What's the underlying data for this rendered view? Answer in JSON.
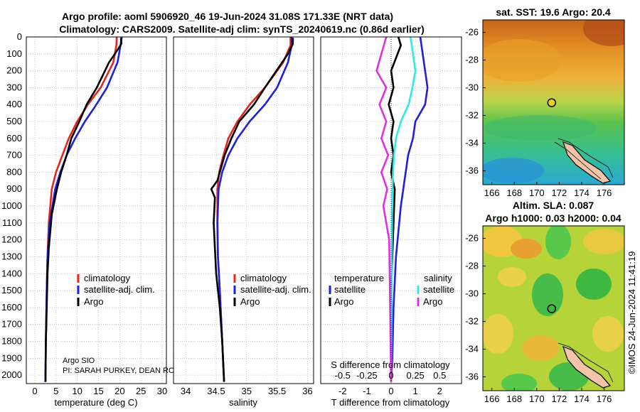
{
  "header": {
    "line1": "Argo profile: aoml 5906920_46 19-Jun-2024 31.08S 171.33E (NRT data)",
    "line2": "Climatology: CARS2009. Satellite-adj clim: synTS_20240619.nc (0.86d earlier)"
  },
  "watermark": "©IMOS 24-Jun-2024 11:41:19",
  "colors": {
    "climatology": "#e8251c",
    "satellite": "#1f1fdc",
    "argo": "#000000",
    "sal_satellite": "#33e8e8",
    "sal_argo": "#e030e0"
  },
  "chart_data": [
    {
      "id": "temperature",
      "type": "line",
      "xlabel": "temperature (deg C)",
      "ylabel": "",
      "xlim": [
        -2,
        31
      ],
      "ylim": [
        2050,
        0
      ],
      "xticks": [
        0,
        5,
        10,
        15,
        20,
        25,
        30
      ],
      "yticks": [
        0,
        100,
        200,
        300,
        400,
        500,
        600,
        700,
        800,
        900,
        1000,
        1100,
        1200,
        1300,
        1400,
        1500,
        1600,
        1700,
        1800,
        1900,
        2000
      ],
      "legend": [
        "climatology",
        "satellite-adj. clim.",
        "Argo"
      ],
      "legend_position": "bottom-right",
      "annotations": [
        "Argo SIO",
        "PI: SARAH PURKEY, DEAN RO"
      ],
      "series": [
        {
          "name": "climatology",
          "color": "#e8251c",
          "x": [
            19.3,
            19.2,
            18.5,
            15.5,
            12.5,
            10.0,
            8.0,
            6.5,
            5.0,
            4.0,
            3.3,
            3.0,
            2.8,
            2.6,
            2.5
          ],
          "depth": [
            0,
            50,
            150,
            300,
            400,
            500,
            600,
            700,
            800,
            900,
            1100,
            1300,
            1500,
            1800,
            2040
          ]
        },
        {
          "name": "satellite-adj. clim.",
          "color": "#1f1fdc",
          "x": [
            20.5,
            20.2,
            19.5,
            17.0,
            14.5,
            11.8,
            9.5,
            7.5,
            6.0,
            4.8,
            3.5,
            3.0,
            2.8,
            2.6,
            2.5
          ],
          "depth": [
            0,
            50,
            150,
            300,
            400,
            500,
            600,
            700,
            800,
            900,
            1100,
            1300,
            1500,
            1800,
            2040
          ]
        },
        {
          "name": "Argo",
          "color": "#000000",
          "x": [
            20.3,
            20.4,
            19.4,
            17.5,
            14.6,
            12.2,
            10.5,
            8.6,
            7.5,
            6.2,
            5.2,
            4.0,
            3.3,
            3.0,
            2.8,
            2.6,
            2.5
          ],
          "depth": [
            5,
            40,
            80,
            150,
            300,
            400,
            500,
            600,
            700,
            800,
            900,
            1050,
            1250,
            1400,
            1600,
            1800,
            2040
          ]
        }
      ]
    },
    {
      "id": "salinity",
      "type": "line",
      "xlabel": "salinity",
      "ylabel": "",
      "xlim": [
        33.8,
        36.1
      ],
      "ylim": [
        2050,
        0
      ],
      "xticks": [
        34,
        34.5,
        35,
        35.5,
        36
      ],
      "xtick_labels": [
        "34",
        "34.5",
        "35",
        "35.5",
        "36"
      ],
      "legend": [
        "climatology",
        "satellite-adj. clim.",
        "Argo"
      ],
      "legend_position": "bottom-right",
      "series": [
        {
          "name": "climatology",
          "color": "#e8251c",
          "x": [
            35.72,
            35.72,
            35.6,
            35.3,
            35.05,
            34.85,
            34.7,
            34.62,
            34.55,
            34.52,
            34.52,
            34.53,
            34.56,
            34.6,
            34.63
          ],
          "depth": [
            0,
            50,
            150,
            300,
            400,
            500,
            600,
            700,
            800,
            900,
            1100,
            1300,
            1500,
            1800,
            2040
          ]
        },
        {
          "name": "satellite-adj. clim.",
          "color": "#1f1fdc",
          "x": [
            35.74,
            35.74,
            35.68,
            35.5,
            35.3,
            35.05,
            34.85,
            34.7,
            34.6,
            34.54,
            34.52,
            34.53,
            34.56,
            34.6,
            34.63
          ],
          "depth": [
            0,
            50,
            150,
            300,
            400,
            500,
            600,
            700,
            800,
            900,
            1100,
            1300,
            1500,
            1800,
            2040
          ]
        },
        {
          "name": "Argo",
          "color": "#000000",
          "x": [
            35.76,
            35.76,
            35.68,
            35.3,
            35.12,
            34.88,
            34.75,
            34.64,
            34.56,
            34.52,
            34.42,
            34.48,
            34.46,
            34.48,
            34.5,
            34.56,
            34.6,
            34.63
          ],
          "depth": [
            5,
            40,
            100,
            300,
            400,
            500,
            600,
            700,
            800,
            850,
            900,
            950,
            1100,
            1250,
            1400,
            1600,
            1800,
            2040
          ]
        }
      ]
    },
    {
      "id": "T difference",
      "type": "line",
      "xlabel": "T difference from climatology",
      "ylabel": "",
      "xlim": [
        -2.9,
        2.9
      ],
      "ylim": [
        2050,
        0
      ],
      "xticks": [
        -2,
        -1,
        0,
        1,
        2
      ],
      "top_axis_label": "S difference from climatology",
      "top_ticks": [
        "-0.5",
        "-0.25",
        "0",
        "0.25",
        "0.5"
      ],
      "legend_temperature_title": "temperature",
      "legend_salinity_title": "salinity",
      "legend_entries": [
        "satellite",
        "Argo",
        "satellite",
        "Argo"
      ],
      "series": [
        {
          "name": "T satellite",
          "color": "#1f1fdc",
          "x": [
            1.2,
            1.4,
            1.5,
            1.4,
            1.0,
            0.9,
            0.7,
            0.6,
            0.5,
            0.4,
            0.2,
            0.1,
            0.05,
            0
          ],
          "depth": [
            0,
            200,
            300,
            400,
            500,
            600,
            700,
            800,
            900,
            1000,
            1300,
            1600,
            1900,
            2040
          ]
        },
        {
          "name": "T Argo",
          "color": "#000000",
          "x": [
            0.3,
            0.4,
            0.0,
            0.1,
            -0.1,
            0.1,
            0.0,
            0.1,
            0.0,
            0.15,
            0.1,
            0.0,
            0.0
          ],
          "depth": [
            0,
            50,
            200,
            300,
            400,
            500,
            600,
            700,
            800,
            900,
            1100,
            1500,
            2040
          ]
        },
        {
          "name": "S satellite",
          "color": "#33e8e8",
          "x": [
            0.2,
            0.25,
            0.22,
            0.18,
            0.1,
            0.05,
            0.03,
            0.02,
            0.01,
            0
          ],
          "depth": [
            0,
            200,
            300,
            400,
            500,
            600,
            700,
            800,
            1000,
            2040
          ]
        },
        {
          "name": "S Argo",
          "color": "#e030e0",
          "x": [
            -0.05,
            -0.15,
            -0.05,
            -0.12,
            -0.05,
            -0.1,
            -0.03,
            -0.1,
            -0.04,
            -0.08,
            -0.02,
            0.0
          ],
          "depth": [
            0,
            200,
            300,
            400,
            500,
            600,
            700,
            800,
            900,
            1000,
            1200,
            2040
          ]
        }
      ]
    },
    {
      "id": "sat-sst-map",
      "type": "heatmap",
      "title": "sat. SST: 19.6 Argo: 20.4",
      "xticks": [
        166,
        168,
        170,
        172,
        174,
        176
      ],
      "yticks": [
        -26,
        -28,
        -30,
        -32,
        -34,
        -36
      ],
      "xlim": [
        165.2,
        177.8
      ],
      "ylim": [
        -37,
        -25.1
      ],
      "marker": {
        "lon": 171.33,
        "lat": -31.08
      }
    },
    {
      "id": "altim-sla-map",
      "type": "heatmap",
      "title": "Altim. SLA: 0.087",
      "subtitle": "Argo h1000: 0.03 h2000: 0.04",
      "xticks": [
        166,
        168,
        170,
        172,
        174,
        176
      ],
      "yticks": [
        -26,
        -28,
        -30,
        -32,
        -34,
        -36
      ],
      "xlim": [
        165.2,
        177.8
      ],
      "ylim": [
        -37,
        -25.1
      ],
      "marker": {
        "lon": 171.33,
        "lat": -31.08
      }
    }
  ]
}
